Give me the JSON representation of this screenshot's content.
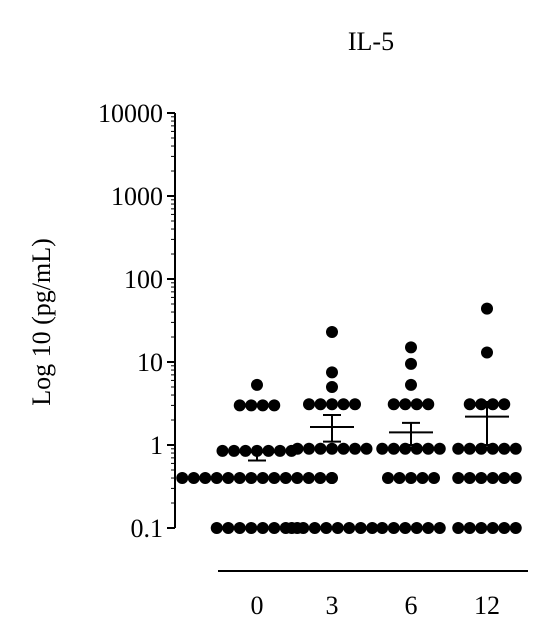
{
  "chart_data": {
    "type": "scatter",
    "title": "IL-5",
    "ylabel": "Log 10 (pg/mL)",
    "xlabel": "",
    "y_scale": "log",
    "ylim": [
      0.1,
      10000
    ],
    "yticks": [
      "10000",
      "1000",
      "100",
      "10",
      "1",
      "0.1"
    ],
    "categories": [
      "0",
      "3",
      "6",
      "12"
    ],
    "grid": false,
    "point_color": "#000000",
    "error_bars": "mean with SEM",
    "groups": [
      {
        "category": "0",
        "points": [
          5.3,
          3.0,
          3.0,
          3.0,
          3.0,
          0.85,
          0.85,
          0.85,
          0.85,
          0.85,
          0.85,
          0.85,
          0.4,
          0.4,
          0.4,
          0.4,
          0.4,
          0.4,
          0.4,
          0.4,
          0.4,
          0.4,
          0.4,
          0.4,
          0.4,
          0.4,
          0.1,
          0.1,
          0.1,
          0.1,
          0.1,
          0.1,
          0.1,
          0.1
        ],
        "mean": 0.82,
        "sem_low": 0.65,
        "sem_high": 0.85
      },
      {
        "category": "3",
        "points": [
          23.0,
          7.5,
          5.0,
          3.1,
          3.1,
          3.1,
          3.1,
          3.1,
          0.9,
          0.9,
          0.9,
          0.9,
          0.9,
          0.9,
          0.9,
          0.4,
          0.1,
          0.1,
          0.1,
          0.1,
          0.1,
          0.1,
          0.1,
          0.1
        ],
        "mean": 1.65,
        "sem_low": 1.1,
        "sem_high": 2.3
      },
      {
        "category": "6",
        "points": [
          15.0,
          9.5,
          5.3,
          3.1,
          3.1,
          3.1,
          3.1,
          0.9,
          0.9,
          0.9,
          0.9,
          0.9,
          0.9,
          0.4,
          0.4,
          0.4,
          0.4,
          0.4,
          0.1,
          0.1,
          0.1,
          0.1,
          0.1,
          0.1
        ],
        "mean": 1.42,
        "sem_low": 1.0,
        "sem_high": 1.85
      },
      {
        "category": "12",
        "points": [
          44.0,
          13.0,
          3.1,
          3.1,
          3.1,
          3.1,
          0.9,
          0.9,
          0.9,
          0.9,
          0.9,
          0.9,
          0.4,
          0.4,
          0.4,
          0.4,
          0.4,
          0.4,
          0.1,
          0.1,
          0.1,
          0.1,
          0.1,
          0.1
        ],
        "mean": 2.2,
        "sem_low": 1.0,
        "sem_high": 3.3
      }
    ]
  }
}
